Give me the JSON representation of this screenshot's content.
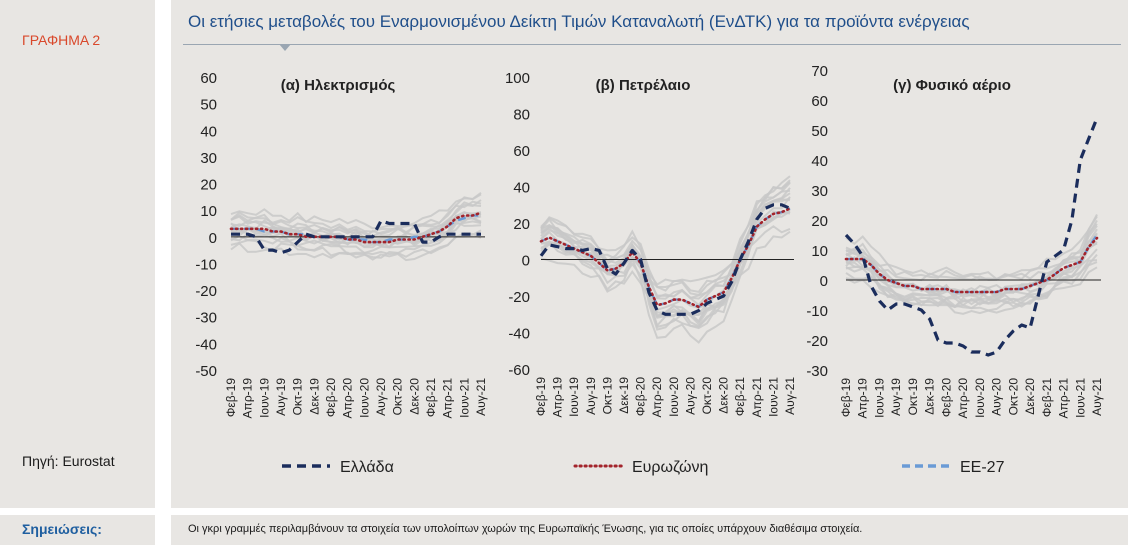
{
  "sidebar": {
    "figure_label": "ΓΡΑΦΗΜΑ 2",
    "source": "Πηγή: Eurostat"
  },
  "header": {
    "title": "Οι ετήσιες μεταβολές του Εναρμονισμένου Δείκτη Τιμών Καταναλωτή (ΕνΔΤΚ) για τα προϊόντα ενέργειας"
  },
  "footer": {
    "notes_label": "Σημειώσεις:",
    "notes_text": "Οι γκρι γραμμές περιλαμβάνουν τα στοιχεία των υπολοίπων χωρών της Ευρωπαϊκής Ένωσης, για τις οποίες υπάρχουν διαθέσιμα στοιχεία."
  },
  "legend": {
    "items": [
      {
        "label": "Ελλάδα",
        "color": "#1b2d5c",
        "style": "dashed"
      },
      {
        "label": "Ευρωζώνη",
        "color": "#a3242c",
        "style": "dotted"
      },
      {
        "label": "ΕΕ-27",
        "color": "#6a9bd6",
        "style": "dashed"
      }
    ]
  },
  "colors": {
    "other_countries": "#c8c8c8"
  },
  "chart_data": [
    {
      "type": "line",
      "title": "(α) Ηλεκτρισμός",
      "ylim": [
        -50,
        60
      ],
      "yticks": [
        60,
        50,
        40,
        30,
        20,
        10,
        0,
        -10,
        -20,
        -30,
        -40,
        -50
      ],
      "xticks": [
        "Φεβ-19",
        "Απρ-19",
        "Ιουν-19",
        "Αυγ-19",
        "Οκτ-19",
        "Δεκ-19",
        "Φεβ-20",
        "Απρ-20",
        "Ιουν-20",
        "Αυγ-20",
        "Οκτ-20",
        "Δεκ-20",
        "Φεβ-21",
        "Απρ-21",
        "Ιουν-21",
        "Αυγ-21"
      ],
      "x_count": 31,
      "series": [
        {
          "name": "Ελλάδα",
          "values": [
            1,
            1,
            1,
            0,
            -5,
            -5,
            -6,
            -5,
            -2,
            1,
            0,
            0,
            0,
            0,
            0,
            0,
            0,
            0,
            6,
            5,
            5,
            5,
            5,
            -2,
            -2,
            0,
            1,
            1,
            1,
            1,
            1
          ]
        },
        {
          "name": "Ευρωζώνη",
          "values": [
            3,
            3,
            3,
            3,
            3,
            2,
            2,
            1,
            1,
            0,
            0,
            0,
            0,
            0,
            -1,
            -1,
            -2,
            -2,
            -2,
            -2,
            -1,
            -1,
            -1,
            0,
            1,
            2,
            4,
            7,
            8,
            8,
            9
          ]
        },
        {
          "name": "ΕΕ-27",
          "values": [
            3,
            3,
            3,
            3,
            2,
            2,
            2,
            1,
            1,
            1,
            0,
            0,
            0,
            0,
            -1,
            -1,
            -1,
            -2,
            -2,
            -1,
            -1,
            -1,
            0,
            0,
            1,
            2,
            4,
            6,
            7,
            8,
            8
          ]
        }
      ]
    },
    {
      "type": "line",
      "title": "(β) Πετρέλαιο",
      "ylim": [
        -60,
        100
      ],
      "yticks": [
        100,
        80,
        60,
        40,
        20,
        0,
        -20,
        -40,
        -60
      ],
      "xticks": [
        "Φεβ-19",
        "Απρ-19",
        "Ιουν-19",
        "Αυγ-19",
        "Οκτ-19",
        "Δεκ-19",
        "Φεβ-20",
        "Απρ-20",
        "Ιουν-20",
        "Αυγ-20",
        "Οκτ-20",
        "Δεκ-20",
        "Φεβ-21",
        "Απρ-21",
        "Ιουν-21",
        "Αυγ-21"
      ],
      "x_count": 31,
      "series": [
        {
          "name": "Ελλάδα",
          "values": [
            2,
            8,
            7,
            6,
            6,
            5,
            6,
            5,
            -5,
            -8,
            -2,
            5,
            0,
            -18,
            -28,
            -30,
            -30,
            -30,
            -30,
            -28,
            -24,
            -22,
            -20,
            -12,
            0,
            10,
            22,
            28,
            30,
            30,
            28
          ]
        },
        {
          "name": "Ευρωζώνη",
          "values": [
            10,
            12,
            10,
            8,
            6,
            4,
            2,
            -2,
            -6,
            -5,
            -2,
            4,
            -2,
            -15,
            -25,
            -24,
            -22,
            -22,
            -24,
            -26,
            -22,
            -20,
            -18,
            -10,
            0,
            8,
            18,
            22,
            25,
            26,
            28
          ]
        },
        {
          "name": "ΕΕ-27",
          "values": [
            10,
            12,
            10,
            8,
            6,
            4,
            2,
            -2,
            -6,
            -5,
            -2,
            4,
            -2,
            -15,
            -25,
            -24,
            -22,
            -22,
            -24,
            -26,
            -22,
            -20,
            -18,
            -10,
            0,
            8,
            18,
            22,
            25,
            26,
            28
          ]
        }
      ]
    },
    {
      "type": "line",
      "title": "(γ) Φυσικό αέριο",
      "ylim": [
        -30,
        70
      ],
      "yticks": [
        70,
        60,
        50,
        40,
        30,
        20,
        10,
        0,
        -10,
        -20,
        -30
      ],
      "xticks": [
        "Φεβ-19",
        "Απρ-19",
        "Ιουν-19",
        "Αυγ-19",
        "Οκτ-19",
        "Δεκ-19",
        "Φεβ-20",
        "Απρ-20",
        "Ιουν-20",
        "Αυγ-20",
        "Οκτ-20",
        "Δεκ-20",
        "Φεβ-21",
        "Απρ-21",
        "Ιουν-21",
        "Αυγ-21"
      ],
      "x_count": 31,
      "series": [
        {
          "name": "Ελλάδα",
          "values": [
            15,
            12,
            8,
            -2,
            -7,
            -10,
            -8,
            -8,
            -9,
            -10,
            -13,
            -20,
            -21,
            -21,
            -22,
            -24,
            -24,
            -25,
            -24,
            -20,
            -17,
            -15,
            -16,
            -5,
            6,
            8,
            10,
            20,
            40,
            47,
            54
          ]
        },
        {
          "name": "Ευρωζώνη",
          "values": [
            7,
            7,
            7,
            5,
            2,
            0,
            -1,
            -2,
            -2,
            -3,
            -3,
            -3,
            -3,
            -4,
            -4,
            -4,
            -4,
            -4,
            -4,
            -3,
            -3,
            -3,
            -2,
            -1,
            0,
            2,
            4,
            5,
            6,
            11,
            14
          ]
        },
        {
          "name": "ΕΕ-27",
          "values": [
            7,
            7,
            7,
            5,
            2,
            0,
            -1,
            -2,
            -2,
            -3,
            -3,
            -3,
            -3,
            -4,
            -4,
            -4,
            -4,
            -4,
            -4,
            -3,
            -3,
            -3,
            -2,
            -1,
            0,
            2,
            4,
            5,
            6,
            11,
            15
          ]
        }
      ]
    }
  ]
}
